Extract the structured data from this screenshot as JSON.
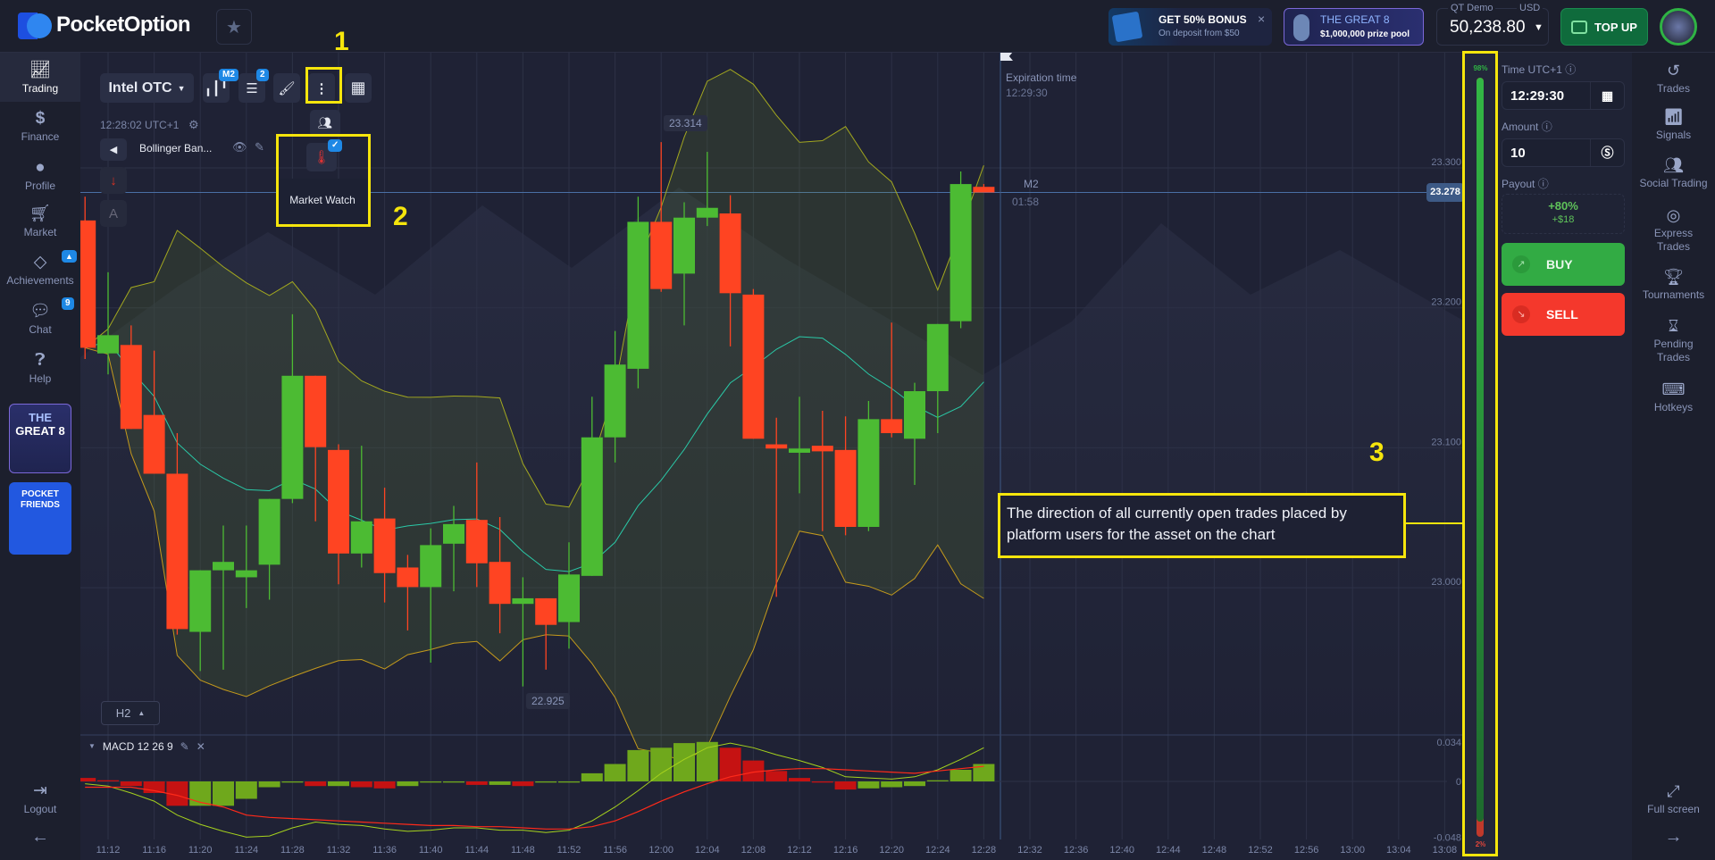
{
  "header": {
    "brand": "PocketOption",
    "bonus": {
      "title": "GET 50% BONUS",
      "subtitle": "On deposit from $50"
    },
    "promo": {
      "title": "THE GREAT 8",
      "subtitle": "$1,000,000 prize pool"
    },
    "account": {
      "type": "QT Demo",
      "currency": "USD",
      "balance": "50,238.80"
    },
    "topup_label": "TOP UP"
  },
  "sidebar": {
    "items": [
      {
        "label": "Trading",
        "icon": "chart-line-icon",
        "active": true
      },
      {
        "label": "Finance",
        "icon": "dollar-icon"
      },
      {
        "label": "Profile",
        "icon": "user-icon"
      },
      {
        "label": "Market",
        "icon": "cart-icon"
      },
      {
        "label": "Achievements",
        "icon": "diamond-icon",
        "badge": "🔔"
      },
      {
        "label": "Chat",
        "icon": "chat-icon",
        "badge": "9"
      },
      {
        "label": "Help",
        "icon": "question-icon"
      }
    ],
    "promo_great8": {
      "line1": "THE",
      "line2": "GREAT 8"
    },
    "promo_friends": {
      "line1": "POCKET",
      "line2": "FRIENDS"
    },
    "logout_label": "Logout"
  },
  "toolbar": {
    "asset": "Intel OTC",
    "timeframe_badge": "M2",
    "indicators_badge": "2",
    "server_time": "12:28:02 UTC+1",
    "indicator_name": "Bollinger Ban...",
    "market_watch_label": "Market Watch",
    "timeframe_button": "H2"
  },
  "chart": {
    "expiration_label": "Expiration time",
    "expiration_time": "12:29:30",
    "candle_period": "M2",
    "candle_countdown": "01:58",
    "current_price": "23.278",
    "high_label": "23.314",
    "low_label": "22.925",
    "macd_label": "MACD 12 26 9"
  },
  "chart_data": {
    "type": "candlestick",
    "asset": "Intel OTC",
    "candle_fields": [
      "time",
      "open",
      "high",
      "low",
      "close"
    ],
    "candles": [
      [
        "11:10",
        23.258,
        23.275,
        23.159,
        23.167
      ],
      [
        "11:12",
        23.163,
        23.221,
        23.148,
        23.176
      ],
      [
        "11:14",
        23.169,
        23.183,
        23.109,
        23.109
      ],
      [
        "11:16",
        23.119,
        23.165,
        23.077,
        23.077
      ],
      [
        "11:18",
        23.077,
        23.106,
        22.962,
        22.966
      ],
      [
        "11:20",
        22.964,
        23.008,
        22.936,
        23.008
      ],
      [
        "11:22",
        23.008,
        23.04,
        22.937,
        23.014
      ],
      [
        "11:24",
        23.003,
        23.04,
        22.981,
        23.008
      ],
      [
        "11:26",
        23.012,
        23.059,
        22.987,
        23.059
      ],
      [
        "11:28",
        23.059,
        23.191,
        23.056,
        23.147
      ],
      [
        "11:30",
        23.147,
        23.147,
        23.043,
        23.096
      ],
      [
        "11:32",
        23.094,
        23.098,
        22.998,
        23.02
      ],
      [
        "11:34",
        23.02,
        23.097,
        23.01,
        23.043
      ],
      [
        "11:36",
        23.045,
        23.067,
        22.985,
        23.006
      ],
      [
        "11:38",
        23.01,
        23.019,
        22.965,
        22.996
      ],
      [
        "11:40",
        22.996,
        23.038,
        22.942,
        23.026
      ],
      [
        "11:42",
        23.027,
        23.054,
        22.993,
        23.041
      ],
      [
        "11:44",
        23.044,
        23.085,
        22.996,
        23.013
      ],
      [
        "11:46",
        23.014,
        23.046,
        22.963,
        22.984
      ],
      [
        "11:48",
        22.984,
        23.003,
        22.925,
        22.988
      ],
      [
        "11:50",
        22.988,
        22.988,
        22.937,
        22.969
      ],
      [
        "11:52",
        22.971,
        23.028,
        22.952,
        23.005
      ],
      [
        "11:54",
        23.004,
        23.132,
        23.004,
        23.103
      ],
      [
        "11:56",
        23.103,
        23.179,
        23.085,
        23.155
      ],
      [
        "11:58",
        23.152,
        23.275,
        23.138,
        23.257
      ],
      [
        "12:00",
        23.257,
        23.314,
        23.207,
        23.209
      ],
      [
        "12:02",
        23.22,
        23.271,
        23.183,
        23.26
      ],
      [
        "12:04",
        23.26,
        23.307,
        23.254,
        23.267
      ],
      [
        "12:06",
        23.263,
        23.276,
        23.168,
        23.206
      ],
      [
        "12:08",
        23.205,
        23.209,
        23.102,
        23.102
      ],
      [
        "12:10",
        23.098,
        23.117,
        22.989,
        23.095
      ],
      [
        "12:12",
        23.092,
        23.132,
        23.063,
        23.095
      ],
      [
        "12:14",
        23.097,
        23.122,
        23.036,
        23.093
      ],
      [
        "12:16",
        23.094,
        23.118,
        23.033,
        23.039
      ],
      [
        "12:18",
        23.039,
        23.129,
        23.036,
        23.116
      ],
      [
        "12:20",
        23.116,
        23.185,
        23.103,
        23.106
      ],
      [
        "12:22",
        23.102,
        23.142,
        23.069,
        23.136
      ],
      [
        "12:24",
        23.136,
        23.184,
        23.106,
        23.184
      ],
      [
        "12:26",
        23.186,
        23.293,
        23.181,
        23.284
      ],
      [
        "12:28",
        23.282,
        23.284,
        23.278,
        23.278
      ]
    ],
    "indicator": "Bollinger Bands",
    "price_ticks": [
      "23.300",
      "23.200",
      "23.100",
      "23.000"
    ],
    "price_range": [
      22.9,
      23.33
    ],
    "time_ticks": [
      "11:12",
      "11:16",
      "11:20",
      "11:24",
      "11:28",
      "11:32",
      "11:36",
      "11:40",
      "11:44",
      "11:48",
      "11:52",
      "11:56",
      "12:00",
      "12:04",
      "12:08",
      "12:12",
      "12:16",
      "12:20",
      "12:24",
      "12:28",
      "12:32",
      "12:36",
      "12:40",
      "12:44",
      "12:48",
      "12:52",
      "12:56",
      "13:00",
      "13:04",
      "13:08"
    ],
    "macd": {
      "ticks": [
        "0.034",
        "0",
        "-0.048"
      ],
      "histogram": [
        0.003,
        0.001,
        -0.004,
        -0.01,
        -0.021,
        -0.021,
        -0.021,
        -0.015,
        -0.005,
        -0.001,
        -0.004,
        -0.004,
        -0.005,
        -0.006,
        -0.004,
        -0.001,
        -0.001,
        -0.003,
        -0.003,
        -0.004,
        -0.001,
        -0.001,
        0.007,
        0.015,
        0.027,
        0.029,
        0.033,
        0.034,
        0.029,
        0.018,
        0.009,
        0.003,
        -0.001,
        -0.007,
        -0.006,
        -0.005,
        -0.004,
        0.001,
        0.01,
        0.015
      ],
      "macd_line": [
        -0.002,
        -0.004,
        -0.01,
        -0.017,
        -0.029,
        -0.037,
        -0.043,
        -0.048,
        -0.047,
        -0.04,
        -0.035,
        -0.037,
        -0.038,
        -0.041,
        -0.043,
        -0.042,
        -0.04,
        -0.04,
        -0.042,
        -0.042,
        -0.044,
        -0.042,
        -0.034,
        -0.022,
        -0.008,
        0.007,
        0.019,
        0.029,
        0.033,
        0.029,
        0.023,
        0.018,
        0.012,
        0.004,
        0.003,
        0.002,
        0.004,
        0.01,
        0.019,
        0.029
      ],
      "signal_line": [
        -0.005,
        -0.005,
        -0.005,
        -0.008,
        -0.012,
        -0.018,
        -0.022,
        -0.029,
        -0.031,
        -0.032,
        -0.033,
        -0.034,
        -0.035,
        -0.036,
        -0.037,
        -0.038,
        -0.038,
        -0.039,
        -0.039,
        -0.04,
        -0.041,
        -0.041,
        -0.039,
        -0.034,
        -0.026,
        -0.017,
        -0.009,
        -0.002,
        0.004,
        0.008,
        0.01,
        0.011,
        0.011,
        0.01,
        0.009,
        0.008,
        0.007,
        0.009,
        0.011,
        0.013
      ]
    },
    "colors": {
      "up": "#4cbb33",
      "down": "#ff4422",
      "band": "#a3a81f",
      "middle": "#2ac9a7",
      "macd": "#a6d21d",
      "signal": "#ff2a1a"
    }
  },
  "sentiment": {
    "buy_percent": 98,
    "sell_percent": 2,
    "buy_label": "98%",
    "sell_label": "2%"
  },
  "trade_panel": {
    "time_label": "Time UTC+1",
    "time_value": "12:29:30",
    "amount_label": "Amount",
    "amount_value": "10",
    "payout_label": "Payout",
    "payout_percent": "+80%",
    "payout_amount": "+$18",
    "buy_label": "BUY",
    "sell_label": "SELL"
  },
  "right_nav": [
    {
      "label": "Trades",
      "icon": "history-icon"
    },
    {
      "label": "Signals",
      "icon": "antenna-icon"
    },
    {
      "label": "Social Trading",
      "icon": "group-icon"
    },
    {
      "label": "Express Trades",
      "icon": "target-icon"
    },
    {
      "label": "Tournaments",
      "icon": "trophy-icon"
    },
    {
      "label": "Pending Trades",
      "icon": "hourglass-icon"
    },
    {
      "label": "Hotkeys",
      "icon": "keyboard-icon"
    }
  ],
  "fullscreen_label": "Full screen",
  "annotations": {
    "n1": "1",
    "n2": "2",
    "n3": "3",
    "tooltip": "The direction of all currently open trades placed by platform users for the asset on the chart"
  }
}
